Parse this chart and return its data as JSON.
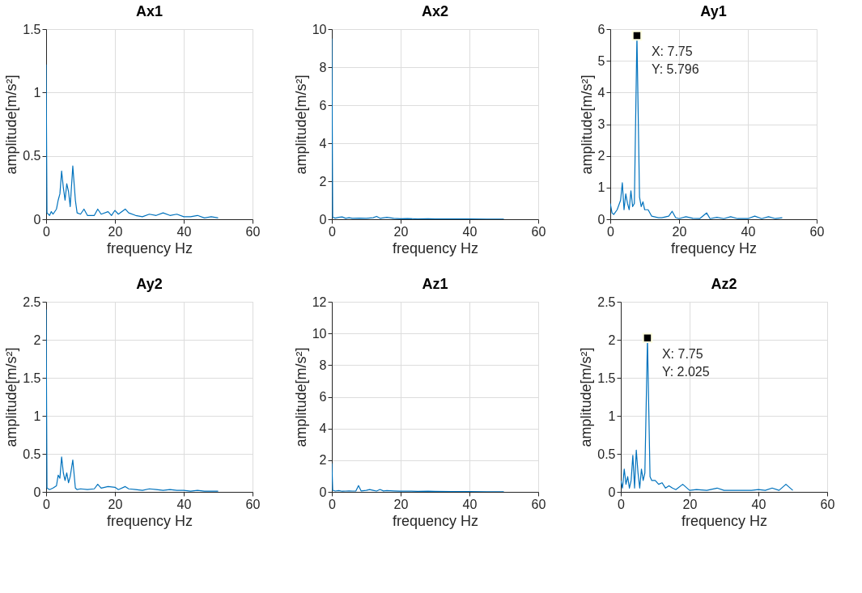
{
  "chart_data": [
    {
      "type": "line",
      "title": "Ax1",
      "xlabel": "frequency Hz",
      "ylabel": "amplitude[m/s²]",
      "xlim": [
        0,
        60
      ],
      "xticks": [
        0,
        20,
        40,
        60
      ],
      "ylim": [
        0,
        1.5
      ],
      "yticks": [
        0,
        0.5,
        1,
        1.5
      ],
      "grid": true,
      "series": [
        {
          "color": "#0072bd",
          "x": [
            0,
            0.25,
            1,
            1.5,
            2,
            3,
            3.5,
            4,
            4.5,
            5,
            5.5,
            6,
            6.5,
            7,
            7.75,
            8.5,
            9,
            10,
            11,
            12,
            14,
            15,
            16,
            18,
            19,
            20,
            21,
            23,
            24,
            26,
            28,
            30,
            32,
            34,
            36,
            38,
            40,
            42,
            44,
            46,
            48,
            50
          ],
          "values": [
            1.22,
            0.05,
            0.03,
            0.06,
            0.04,
            0.08,
            0.15,
            0.2,
            0.38,
            0.25,
            0.15,
            0.28,
            0.22,
            0.1,
            0.42,
            0.15,
            0.05,
            0.04,
            0.08,
            0.03,
            0.03,
            0.08,
            0.04,
            0.06,
            0.03,
            0.07,
            0.04,
            0.08,
            0.05,
            0.03,
            0.02,
            0.04,
            0.03,
            0.05,
            0.03,
            0.04,
            0.02,
            0.02,
            0.03,
            0.01,
            0.02,
            0.01
          ]
        }
      ]
    },
    {
      "type": "line",
      "title": "Ax2",
      "xlabel": "frequency Hz",
      "ylabel": "amplitude[m/s²]",
      "xlim": [
        0,
        60
      ],
      "xticks": [
        0,
        20,
        40,
        60
      ],
      "ylim": [
        0,
        10
      ],
      "yticks": [
        0,
        2,
        4,
        6,
        8,
        10
      ],
      "grid": true,
      "series": [
        {
          "color": "#0072bd",
          "x": [
            0,
            0.25,
            1,
            2,
            3,
            4,
            5,
            6,
            8,
            10,
            12,
            13,
            14,
            16,
            18,
            20,
            22,
            25,
            28,
            30,
            35,
            40,
            45,
            50
          ],
          "values": [
            9.5,
            0.1,
            0.06,
            0.1,
            0.12,
            0.05,
            0.08,
            0.05,
            0.06,
            0.05,
            0.08,
            0.15,
            0.05,
            0.1,
            0.05,
            0.03,
            0.04,
            0.02,
            0.03,
            0.02,
            0.02,
            0.02,
            0.01,
            0.01
          ]
        }
      ]
    },
    {
      "type": "line",
      "title": "Ay1",
      "xlabel": "frequency Hz",
      "ylabel": "amplitude[m/s²]",
      "xlim": [
        0,
        60
      ],
      "xticks": [
        0,
        20,
        40,
        60
      ],
      "ylim": [
        0,
        6
      ],
      "yticks": [
        0,
        1,
        2,
        3,
        4,
        5,
        6
      ],
      "grid": true,
      "annotations": [
        {
          "text": "X: 7.75\nY: 5.796",
          "x": 7.75,
          "y": 5.796
        }
      ],
      "series": [
        {
          "color": "#0072bd",
          "x": [
            0,
            0.5,
            1,
            2,
            3,
            3.5,
            4,
            4.5,
            5,
            5.5,
            6,
            6.5,
            7,
            7.75,
            8.5,
            9,
            9.5,
            10,
            11,
            12,
            14,
            15,
            17,
            18,
            19,
            20,
            22,
            24,
            26,
            28,
            29,
            31,
            33,
            35,
            37,
            40,
            42,
            44,
            46,
            48,
            50
          ],
          "values": [
            0.5,
            0.2,
            0.15,
            0.3,
            0.6,
            1.15,
            0.3,
            0.8,
            0.5,
            0.3,
            0.9,
            0.4,
            0.5,
            5.796,
            0.7,
            0.4,
            0.55,
            0.3,
            0.3,
            0.1,
            0.05,
            0.05,
            0.1,
            0.25,
            0.05,
            0.02,
            0.08,
            0.03,
            0.02,
            0.2,
            0.02,
            0.06,
            0.02,
            0.08,
            0.02,
            0.02,
            0.1,
            0.02,
            0.08,
            0.02,
            0.05
          ]
        }
      ]
    },
    {
      "type": "line",
      "title": "Ay2",
      "xlabel": "frequency Hz",
      "ylabel": "amplitude[m/s²]",
      "xlim": [
        0,
        60
      ],
      "xticks": [
        0,
        20,
        40,
        60
      ],
      "ylim": [
        0,
        2.5
      ],
      "yticks": [
        0,
        0.5,
        1,
        1.5,
        2,
        2.5
      ],
      "grid": true,
      "series": [
        {
          "color": "#0072bd",
          "x": [
            0,
            0.25,
            1,
            2,
            3,
            3.5,
            4,
            4.5,
            5,
            5.5,
            6,
            6.5,
            7,
            7.75,
            8.5,
            9,
            10,
            12,
            14,
            15,
            16,
            18,
            20,
            21,
            23,
            24,
            26,
            28,
            30,
            32,
            34,
            36,
            38,
            40,
            42,
            44,
            46,
            48,
            50
          ],
          "values": [
            2.4,
            0.05,
            0.03,
            0.05,
            0.08,
            0.22,
            0.18,
            0.46,
            0.25,
            0.15,
            0.25,
            0.12,
            0.2,
            0.42,
            0.05,
            0.03,
            0.04,
            0.03,
            0.04,
            0.1,
            0.05,
            0.07,
            0.06,
            0.03,
            0.07,
            0.04,
            0.03,
            0.02,
            0.04,
            0.03,
            0.02,
            0.03,
            0.02,
            0.02,
            0.01,
            0.02,
            0.01,
            0.01,
            0.01
          ]
        }
      ]
    },
    {
      "type": "line",
      "title": "Az1",
      "xlabel": "frequency Hz",
      "ylabel": "amplitude[m/s²]",
      "xlim": [
        0,
        60
      ],
      "xticks": [
        0,
        20,
        40,
        60
      ],
      "ylim": [
        0,
        12
      ],
      "yticks": [
        0,
        2,
        4,
        6,
        8,
        10,
        12
      ],
      "grid": true,
      "series": [
        {
          "color": "#0072bd",
          "x": [
            0,
            0.25,
            1,
            2,
            3,
            4,
            5,
            6,
            7,
            7.75,
            8.5,
            10,
            11,
            12,
            13,
            14,
            15,
            16,
            18,
            20,
            22,
            25,
            28,
            30,
            35,
            40,
            45,
            50
          ],
          "values": [
            1.8,
            0.1,
            0.05,
            0.08,
            0.04,
            0.05,
            0.06,
            0.05,
            0.06,
            0.4,
            0.06,
            0.1,
            0.15,
            0.1,
            0.05,
            0.15,
            0.06,
            0.08,
            0.06,
            0.04,
            0.05,
            0.03,
            0.04,
            0.03,
            0.02,
            0.02,
            0.01,
            0.01
          ]
        }
      ]
    },
    {
      "type": "line",
      "title": "Az2",
      "xlabel": "frequency Hz",
      "ylabel": "amplitude[m/s²]",
      "xlim": [
        0,
        60
      ],
      "xticks": [
        0,
        20,
        40,
        60
      ],
      "ylim": [
        0,
        2.5
      ],
      "yticks": [
        0,
        0.5,
        1,
        1.5,
        2,
        2.5
      ],
      "grid": true,
      "annotations": [
        {
          "text": "X: 7.75\nY: 2.025",
          "x": 7.75,
          "y": 2.025
        }
      ],
      "series": [
        {
          "color": "#0072bd",
          "x": [
            0,
            0.5,
            1,
            1.5,
            2,
            2.5,
            3,
            3.5,
            4,
            4.5,
            5,
            5.5,
            6,
            6.5,
            7,
            7.75,
            8.5,
            9,
            10,
            11,
            12,
            13,
            14,
            15,
            16,
            18,
            20,
            22,
            25,
            28,
            30,
            32,
            35,
            38,
            40,
            42,
            44,
            46,
            48,
            50
          ],
          "values": [
            0.15,
            0.05,
            0.3,
            0.1,
            0.2,
            0.05,
            0.15,
            0.48,
            0.05,
            0.55,
            0.25,
            0.05,
            0.3,
            0.15,
            0.25,
            2.025,
            0.2,
            0.15,
            0.15,
            0.1,
            0.12,
            0.05,
            0.08,
            0.05,
            0.03,
            0.1,
            0.02,
            0.03,
            0.02,
            0.05,
            0.02,
            0.02,
            0.02,
            0.02,
            0.03,
            0.02,
            0.05,
            0.02,
            0.1,
            0.02
          ]
        }
      ]
    }
  ]
}
